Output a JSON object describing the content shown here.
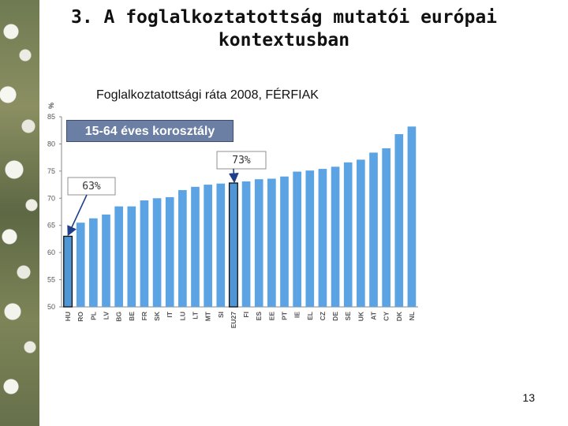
{
  "slide": {
    "title": "3. A foglalkoztatottság mutatói európai kontextusban",
    "page_number": "13"
  },
  "chart_data": {
    "type": "bar",
    "title": "Foglalkoztatottsági ráta 2008, FÉRFIAK",
    "badge": "15-64 éves korosztály",
    "ylabel": "%",
    "ylim": [
      50,
      85
    ],
    "yticks": [
      50,
      55,
      60,
      65,
      70,
      75,
      80,
      85
    ],
    "grid": false,
    "categories": [
      "HU",
      "RO",
      "PL",
      "LV",
      "BG",
      "BE",
      "FR",
      "SK",
      "IT",
      "LU",
      "LT",
      "MT",
      "SI",
      "EU27",
      "FI",
      "ES",
      "EE",
      "PT",
      "IE",
      "EL",
      "CZ",
      "DE",
      "SE",
      "UK",
      "AT",
      "CY",
      "DK",
      "NL"
    ],
    "values": [
      63.0,
      65.5,
      66.3,
      67.0,
      68.5,
      68.5,
      69.6,
      70.0,
      70.2,
      71.5,
      72.1,
      72.5,
      72.7,
      72.8,
      73.1,
      73.5,
      73.6,
      74.0,
      74.9,
      75.1,
      75.4,
      75.8,
      76.6,
      77.1,
      78.4,
      79.2,
      81.8,
      83.2
    ],
    "highlighted": [
      "HU",
      "EU27"
    ],
    "bar_color": "#5ba3e3",
    "highlight_color": "#4e96d6",
    "annotations": [
      {
        "text": "73%",
        "target": "EU27"
      },
      {
        "text": "63%",
        "target": "HU"
      }
    ]
  }
}
